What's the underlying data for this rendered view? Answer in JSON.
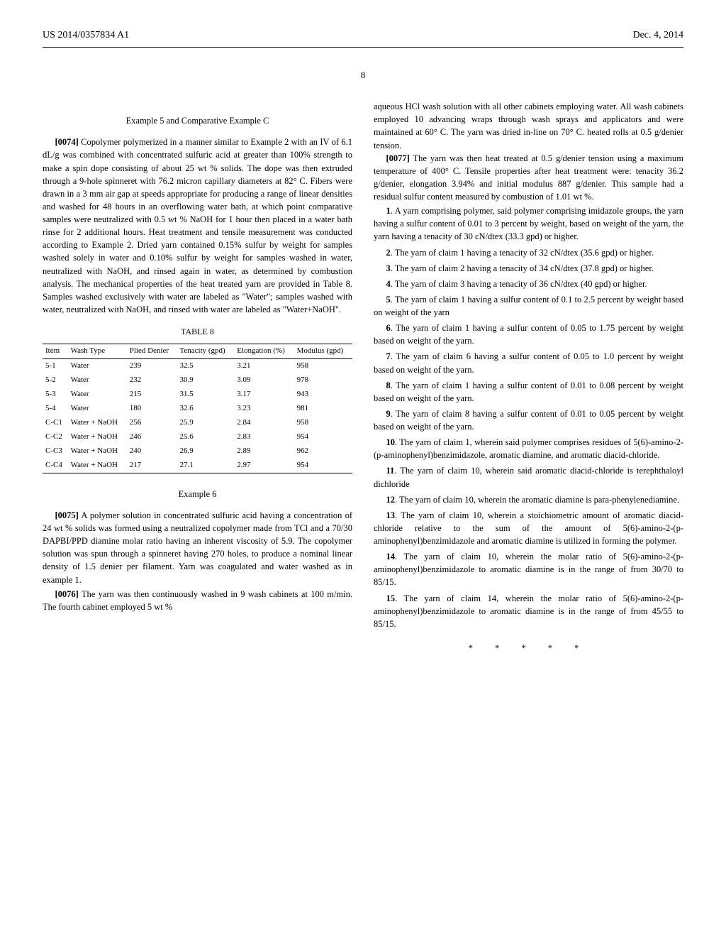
{
  "header": {
    "left": "US 2014/0357834 A1",
    "right": "Dec. 4, 2014"
  },
  "page_number": "8",
  "left_col": {
    "ex5_title": "Example 5 and Comparative Example C",
    "para_0074_num": "[0074]",
    "para_0074": "Copolymer polymerized in a manner similar to Example 2 with an IV of 6.1 dL/g was combined with concentrated sulfuric acid at greater than 100% strength to make a spin dope consisting of about 25 wt % solids. The dope was then extruded through a 9-hole spinneret with 76.2 micron capillary diameters at 82° C. Fibers were drawn in a 3 mm air gap at speeds appropriate for producing a range of linear densities and washed for 48 hours in an overflowing water bath, at which point comparative samples were neutralized with 0.5 wt % NaOH for 1 hour then placed in a water bath rinse for 2 additional hours. Heat treatment and tensile measurement was conducted according to Example 2. Dried yarn contained 0.15% sulfur by weight for samples washed solely in water and 0.10% sulfur by weight for samples washed in water, neutralized with NaOH, and rinsed again in water, as determined by combustion analysis. The mechanical properties of the heat treated yarn are provided in Table 8. Samples washed exclusively with water are labeled as \"Water\"; samples washed with water, neutralized with NaOH, and rinsed with water are labeled as \"Water+NaOH\".",
    "table8": {
      "caption": "TABLE 8",
      "columns": [
        "Item",
        "Wash Type",
        "Plied Denier",
        "Tenacity (gpd)",
        "Elongation (%)",
        "Modulus (gpd)"
      ],
      "rows": [
        [
          "5-1",
          "Water",
          "239",
          "32.5",
          "3.21",
          "958"
        ],
        [
          "5-2",
          "Water",
          "232",
          "30.9",
          "3.09",
          "978"
        ],
        [
          "5-3",
          "Water",
          "215",
          "31.5",
          "3.17",
          "943"
        ],
        [
          "5-4",
          "Water",
          "180",
          "32.6",
          "3.23",
          "981"
        ],
        [
          "C-C1",
          "Water + NaOH",
          "256",
          "25.9",
          "2.84",
          "958"
        ],
        [
          "C-C2",
          "Water + NaOH",
          "246",
          "25.6",
          "2.83",
          "954"
        ],
        [
          "C-C3",
          "Water + NaOH",
          "240",
          "26.9",
          "2.89",
          "962"
        ],
        [
          "C-C4",
          "Water + NaOH",
          "217",
          "27.1",
          "2.97",
          "954"
        ]
      ]
    },
    "ex6_title": "Example 6",
    "para_0075_num": "[0075]",
    "para_0075": "A polymer solution in concentrated sulfuric acid having a concentration of 24 wt % solids was formed using a neutralized copolymer made from TCl and a 70/30 DAPBI/PPD diamine molar ratio having an inherent viscosity of 5.9. The copolymer solution was spun through a spinneret having 270 holes, to produce a nominal linear density of 1.5 denier per filament. Yarn was coagulated and water washed as in example 1.",
    "para_0076_num": "[0076]",
    "para_0076": "The yarn was then continuously washed in 9 wash cabinets at 100 m/min. The fourth cabinet employed 5 wt %"
  },
  "right_col": {
    "cont_text": "aqueous HCl wash solution with all other cabinets employing water. All wash cabinets employed 10 advancing wraps through wash sprays and applicators and were maintained at 60° C. The yarn was dried in-line on 70° C. heated rolls at 0.5 g/denier tension.",
    "para_0077_num": "[0077]",
    "para_0077": "The yarn was then heat treated at 0.5 g/denier tension using a maximum temperature of 400° C. Tensile properties after heat treatment were: tenacity 36.2 g/denier, elongation 3.94% and initial modulus 887 g/denier. This sample had a residual sulfur content measured by combustion of 1.01 wt %.",
    "claims": [
      {
        "num": "1",
        "text": ". A yarn comprising polymer, said polymer comprising imidazole groups, the yarn having a sulfur content of 0.01 to 3 percent by weight, based on weight of the yarn, the yarn having a tenacity of 30 cN/dtex (33.3 gpd) or higher."
      },
      {
        "num": "2",
        "text": ". The yarn of claim 1 having a tenacity of 32 cN/dtex (35.6 gpd) or higher."
      },
      {
        "num": "3",
        "text": ". The yarn of claim 2 having a tenacity of 34 cN/dtex (37.8 gpd) or higher."
      },
      {
        "num": "4",
        "text": ". The yarn of claim 3 having a tenacity of 36 cN/dtex (40 gpd) or higher."
      },
      {
        "num": "5",
        "text": ". The yarn of claim 1 having a sulfur content of 0.1 to 2.5 percent by weight based on weight of the yarn"
      },
      {
        "num": "6",
        "text": ". The yarn of claim 1 having a sulfur content of 0.05 to 1.75 percent by weight based on weight of the yarn."
      },
      {
        "num": "7",
        "text": ". The yarn of claim 6 having a sulfur content of 0.05 to 1.0 percent by weight based on weight of the yarn."
      },
      {
        "num": "8",
        "text": ". The yarn of claim 1 having a sulfur content of 0.01 to 0.08 percent by weight based on weight of the yarn."
      },
      {
        "num": "9",
        "text": ". The yarn of claim 8 having a sulfur content of 0.01 to 0.05 percent by weight based on weight of the yarn."
      },
      {
        "num": "10",
        "text": ". The yarn of claim 1, wherein said polymer comprises residues of 5(6)-amino-2-(p-aminophenyl)benzimidazole, aromatic diamine, and aromatic diacid-chloride."
      },
      {
        "num": "11",
        "text": ". The yarn of claim 10, wherein said aromatic diacid-chloride is terephthaloyl dichloride"
      },
      {
        "num": "12",
        "text": ". The yarn of claim 10, wherein the aromatic diamine is para-phenylenediamine."
      },
      {
        "num": "13",
        "text": ". The yarn of claim 10, wherein a stoichiometric amount of aromatic diacid-chloride relative to the sum of the amount of 5(6)-amino-2-(p-aminophenyl)benzimidazole and aromatic diamine is utilized in forming the polymer."
      },
      {
        "num": "14",
        "text": ". The yarn of claim 10, wherein the molar ratio of 5(6)-amino-2-(p-aminophenyl)benzimidazole to aromatic diamine is in the range of from 30/70 to 85/15."
      },
      {
        "num": "15",
        "text": ". The yarn of claim 14, wherein the molar ratio of 5(6)-amino-2-(p-aminophenyl)benzimidazole to aromatic diamine is in the range of from 45/55 to 85/15."
      }
    ],
    "stars": "* * * * *"
  }
}
